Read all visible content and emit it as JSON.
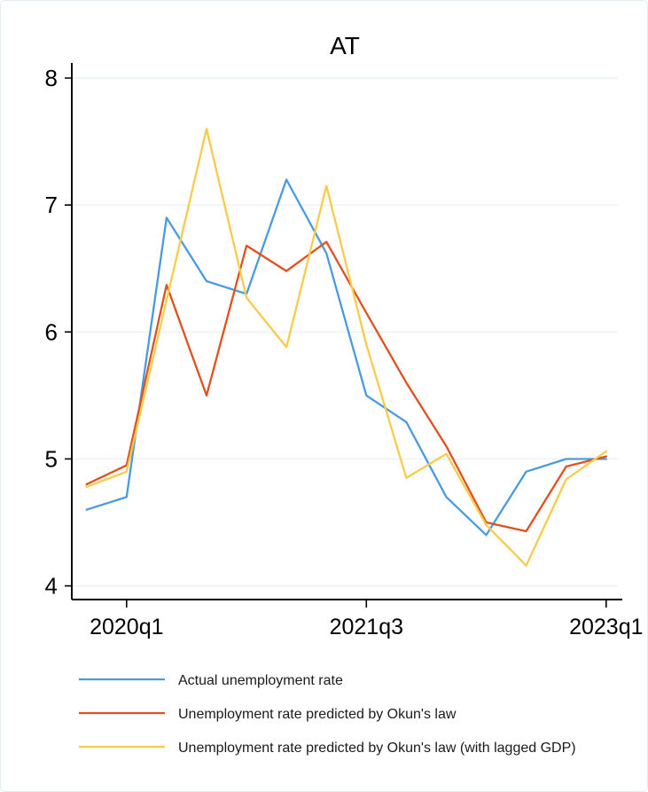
{
  "figure": {
    "background_color": "#ffffff",
    "border_color": "#e3ecef"
  },
  "chart_data": {
    "type": "line",
    "title": "AT",
    "xlabel": "",
    "ylabel": "",
    "ylim": [
      4,
      8
    ],
    "yticks": [
      4,
      5,
      6,
      7,
      8
    ],
    "grid": true,
    "grid_color": "#e8f1f3",
    "axis_color": "#000000",
    "legend_position": "bottom",
    "categories": [
      "2019q4",
      "2020q1",
      "2020q2",
      "2020q3",
      "2020q4",
      "2021q1",
      "2021q2",
      "2021q3",
      "2021q4",
      "2022q1",
      "2022q2",
      "2022q3",
      "2022q4",
      "2023q1"
    ],
    "x_tick_labels": [
      "2020q1",
      "2021q3",
      "2023q1"
    ],
    "x_tick_indices": [
      1,
      7,
      13
    ],
    "series": [
      {
        "name": "Actual unemployment rate",
        "color": "#4a9ae1",
        "values": [
          4.6,
          4.7,
          6.9,
          6.4,
          6.3,
          7.2,
          6.62,
          5.5,
          5.29,
          4.7,
          4.4,
          4.9,
          5.0,
          5.0
        ]
      },
      {
        "name": "Unemployment rate predicted by Okun's law",
        "color": "#e0511e",
        "values": [
          4.8,
          4.95,
          6.37,
          5.5,
          6.68,
          6.48,
          6.71,
          6.15,
          5.6,
          5.1,
          4.5,
          4.43,
          4.94,
          5.02
        ]
      },
      {
        "name": "Unemployment rate predicted by Okun's law (with lagged GDP)",
        "color": "#f9cb4a",
        "values": [
          4.78,
          4.9,
          6.25,
          7.6,
          6.27,
          5.88,
          7.15,
          5.9,
          4.85,
          5.04,
          4.48,
          4.16,
          4.84,
          5.06
        ]
      }
    ]
  }
}
